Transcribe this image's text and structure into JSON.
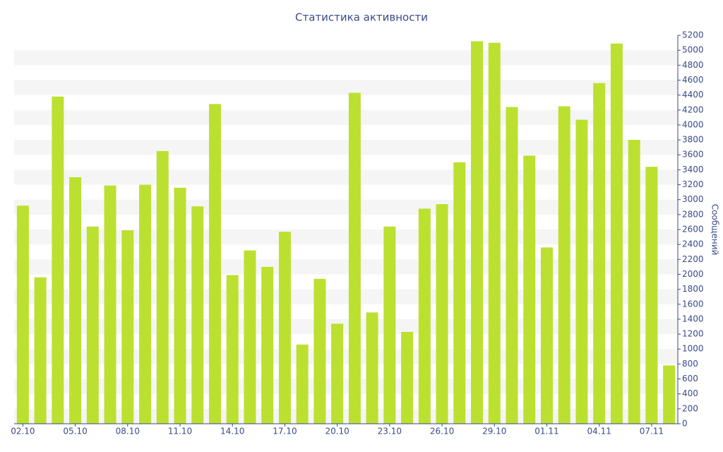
{
  "chart_data": {
    "type": "bar",
    "title": "Статистика активности",
    "y_label": "Сообщений",
    "categories": [
      "02.10",
      null,
      null,
      "05.10",
      null,
      null,
      "08.10",
      null,
      null,
      "11.10",
      null,
      null,
      "14.10",
      null,
      null,
      "17.10",
      null,
      null,
      "20.10",
      null,
      null,
      "23.10",
      null,
      null,
      "26.10",
      null,
      null,
      "29.10",
      null,
      null,
      "01.11",
      null,
      null,
      "04.11",
      null,
      null,
      "07.11",
      null
    ],
    "values": [
      2920,
      1960,
      4380,
      3300,
      2640,
      3190,
      2590,
      3200,
      3650,
      3160,
      2910,
      4280,
      1990,
      2320,
      2100,
      2570,
      1060,
      1940,
      1340,
      4430,
      1490,
      2640,
      1230,
      2880,
      2940,
      3500,
      5120,
      5100,
      4240,
      3590,
      2360,
      4250,
      4070,
      4560,
      5090,
      3800,
      3440,
      780
    ],
    "color": "#bce030",
    "ylim": [
      0,
      5200
    ],
    "yticks": [
      0,
      200,
      400,
      600,
      800,
      1000,
      1200,
      1400,
      1600,
      1800,
      2000,
      2200,
      2400,
      2600,
      2800,
      3000,
      3200,
      3400,
      3600,
      3800,
      4000,
      4200,
      4400,
      4600,
      4800,
      5000,
      5200
    ],
    "grid": true
  }
}
